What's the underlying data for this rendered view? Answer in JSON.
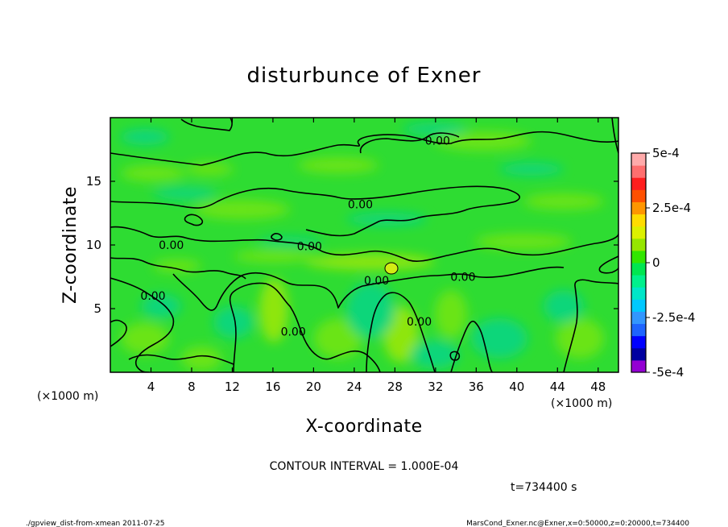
{
  "chart_data": {
    "type": "heatmap",
    "title": "disturbunce of Exner",
    "xlabel": "X-coordinate",
    "ylabel": "Z-coordinate",
    "x_unit": "(×1000 m)",
    "y_unit": "(×1000 m)",
    "xlim": [
      0,
      50
    ],
    "ylim": [
      0,
      20
    ],
    "x_ticks": [
      4,
      8,
      12,
      16,
      20,
      24,
      28,
      32,
      36,
      40,
      44,
      48
    ],
    "y_ticks": [
      5,
      10,
      15
    ],
    "contour_interval_text": "CONTOUR INTERVAL = 1.000E-04",
    "time_text": "t=734400 s",
    "contour_labels": [
      {
        "text": "0.00",
        "x": 32.2,
        "z": 18.2
      },
      {
        "text": "0.00",
        "x": 24.6,
        "z": 13.2
      },
      {
        "text": "0.00",
        "x": 6.0,
        "z": 10.0
      },
      {
        "text": "0.00",
        "x": 19.6,
        "z": 9.9
      },
      {
        "text": "0.00",
        "x": 26.2,
        "z": 7.2
      },
      {
        "text": "0.00",
        "x": 34.7,
        "z": 7.5
      },
      {
        "text": "0.00",
        "x": 4.2,
        "z": 6.0
      },
      {
        "text": "0.00",
        "x": 18.0,
        "z": 3.2
      },
      {
        "text": "0.00",
        "x": 30.4,
        "z": 4.0
      }
    ],
    "colorbar": {
      "min": -0.0005,
      "max": 0.0005,
      "tick_labels": [
        "5e-4",
        "2.5e-4",
        "0",
        "-2.5e-4",
        "-5e-4"
      ],
      "colors": [
        "#9400d3",
        "#0000a0",
        "#0000ff",
        "#1e64ff",
        "#3296ff",
        "#00c8ff",
        "#00e6c8",
        "#00f08c",
        "#00e650",
        "#32e600",
        "#96e600",
        "#dcf000",
        "#ffdc00",
        "#ff9600",
        "#ff5000",
        "#ff1e1e",
        "#ff6e6e",
        "#ffaaaa"
      ]
    }
  },
  "footer": {
    "left": "./gpview_dist-from-xmean  2011-07-25",
    "right": "MarsCond_Exner.nc@Exner,x=0:50000,z=0:20000,t=734400"
  }
}
